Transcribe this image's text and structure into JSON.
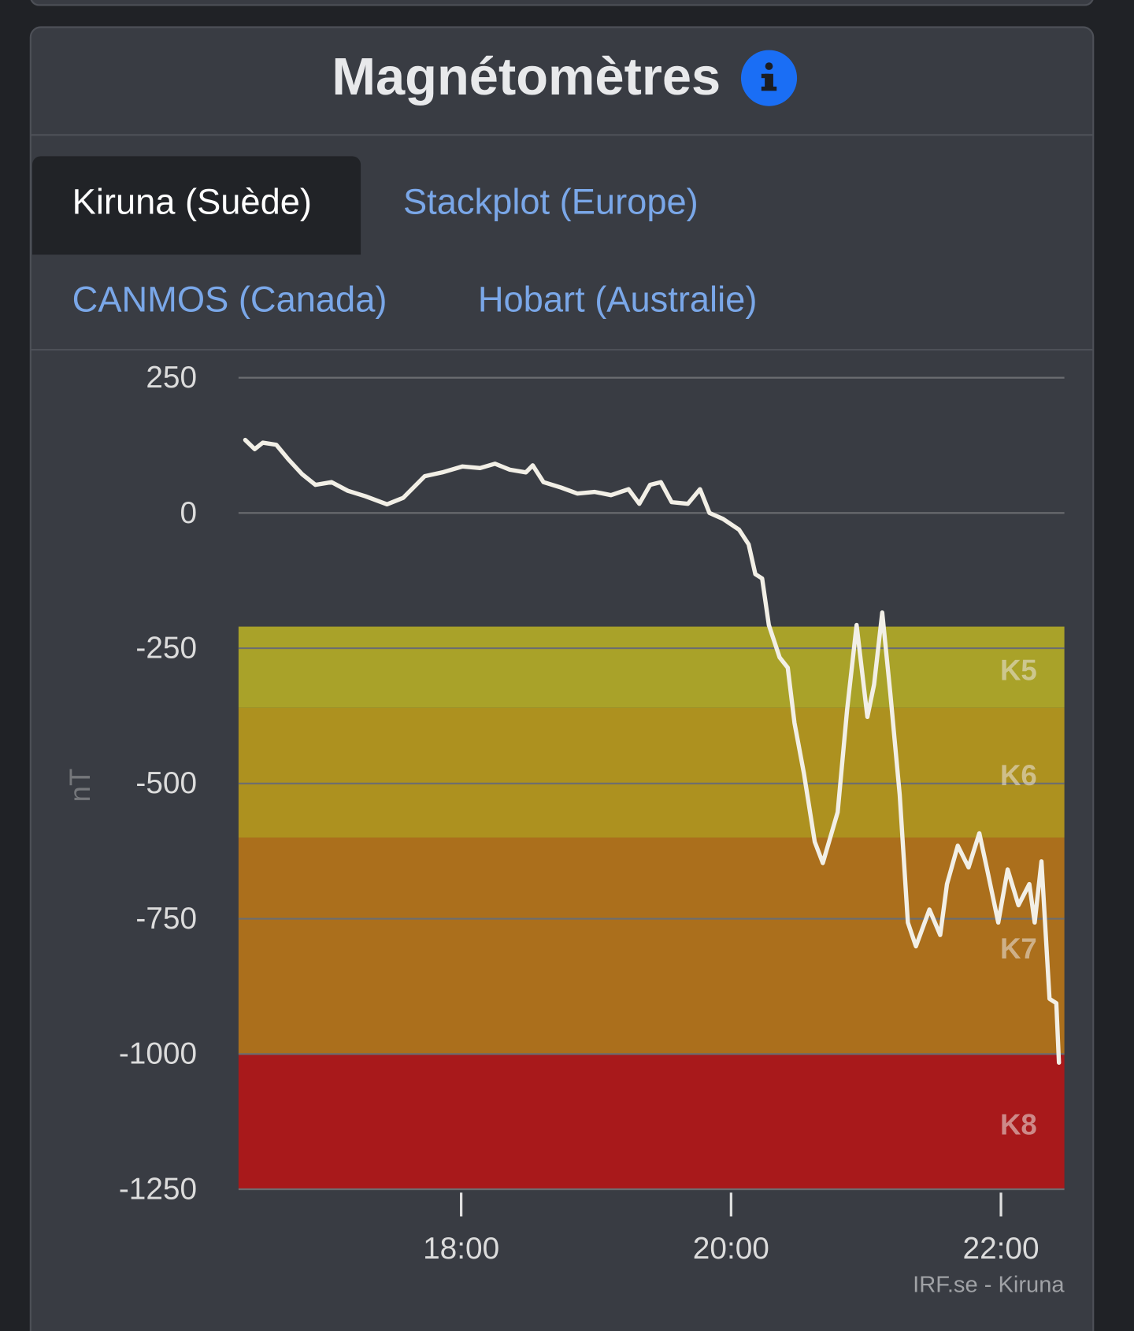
{
  "header": {
    "title": "Magnétomètres"
  },
  "tabs": [
    "Kiruna (Suède)",
    "Stackplot (Europe)",
    "CANMOS (Canada)",
    "Hobart (Australie)"
  ],
  "chart_data": {
    "type": "line",
    "ylabel": "nT",
    "source": "IRF.se - Kiruna",
    "color": "#f2efe6",
    "grid": true,
    "ylim": [
      -1250,
      250
    ],
    "yticks": [
      250,
      0,
      -250,
      -500,
      -750,
      -1000,
      -1250
    ],
    "xlim": [
      16.35,
      22.47
    ],
    "xticks": [
      {
        "value": 18,
        "label": "18:00"
      },
      {
        "value": 20,
        "label": "20:00"
      },
      {
        "value": 22,
        "label": "22:00"
      }
    ],
    "bands": [
      {
        "name": "K5",
        "from": -210,
        "to": -360,
        "color": "#a9a229"
      },
      {
        "name": "K6",
        "from": -360,
        "to": -600,
        "color": "#ad911f"
      },
      {
        "name": "K7",
        "from": -600,
        "to": -1000,
        "color": "#ab6f1c"
      },
      {
        "name": "K8",
        "from": -1000,
        "to": -1250,
        "color": "#a8191b"
      }
    ],
    "x": [
      16.4,
      16.47,
      16.53,
      16.63,
      16.72,
      16.82,
      16.92,
      17.04,
      17.16,
      17.29,
      17.45,
      17.57,
      17.73,
      17.86,
      18.01,
      18.14,
      18.25,
      18.36,
      18.48,
      18.53,
      18.61,
      18.74,
      18.86,
      18.99,
      19.11,
      19.24,
      19.32,
      19.4,
      19.48,
      19.56,
      19.68,
      19.77,
      19.84,
      19.94,
      20.06,
      20.13,
      20.18,
      20.23,
      20.28,
      20.36,
      20.42,
      20.47,
      20.54,
      20.62,
      20.68,
      20.79,
      20.86,
      20.93,
      21.01,
      21.06,
      21.12,
      21.18,
      21.25,
      21.31,
      21.37,
      21.47,
      21.55,
      21.6,
      21.68,
      21.76,
      21.84,
      21.9,
      21.98,
      22.05,
      22.13,
      22.21,
      22.25,
      22.3,
      22.36,
      22.41,
      22.43
    ],
    "values": [
      135,
      118,
      130,
      126,
      99,
      72,
      52,
      57,
      41,
      31,
      16,
      28,
      68,
      75,
      86,
      83,
      91,
      80,
      75,
      88,
      57,
      47,
      36,
      39,
      33,
      44,
      17,
      52,
      57,
      20,
      17,
      44,
      0,
      -11,
      -31,
      -58,
      -113,
      -121,
      -207,
      -267,
      -286,
      -388,
      -482,
      -608,
      -647,
      -553,
      -364,
      -207,
      -377,
      -317,
      -184,
      -333,
      -521,
      -757,
      -801,
      -733,
      -780,
      -686,
      -615,
      -655,
      -592,
      -662,
      -757,
      -659,
      -725,
      -686,
      -757,
      -644,
      -898,
      -906,
      -1016
    ]
  }
}
